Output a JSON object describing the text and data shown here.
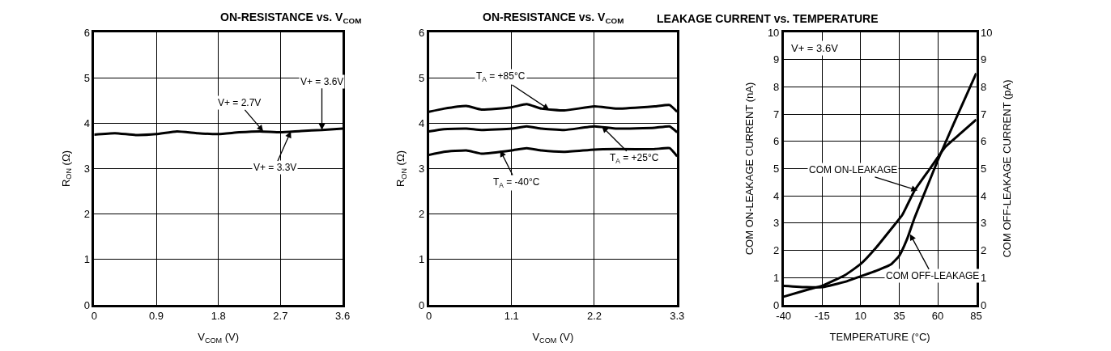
{
  "chart_data": [
    {
      "type": "line",
      "title": "ON-RESISTANCE vs. V$_{COM}$",
      "xlabel": "V$_{COM}$ (V)",
      "ylabel": "R$_{ON}$ (Ω)",
      "xlim": [
        0,
        3.6
      ],
      "xticks": [
        0,
        0.9,
        1.8,
        2.7,
        3.6
      ],
      "ylim": [
        0,
        6
      ],
      "yticks": [
        0,
        1,
        2,
        3,
        4,
        5,
        6
      ],
      "grid": true,
      "x": [
        0,
        0.3,
        0.6,
        0.9,
        1.2,
        1.5,
        1.8,
        2.1,
        2.4,
        2.7,
        3.0,
        3.3,
        3.6
      ],
      "series": [
        {
          "color": "#000000",
          "values": [
            3.75,
            3.78,
            3.74,
            3.76,
            3.82,
            3.78,
            3.76,
            3.8,
            3.82,
            3.8,
            3.83,
            3.85,
            3.88
          ]
        }
      ],
      "annotations": [
        {
          "text": "V+ = 2.7V",
          "x": 2.45,
          "y": 3.82
        },
        {
          "text": "V+ = 3.3V",
          "x": 2.85,
          "y": 3.82
        },
        {
          "text": "V+ = 3.6V",
          "x": 3.3,
          "y": 3.85
        }
      ]
    },
    {
      "type": "line",
      "title": "ON-RESISTANCE vs. V$_{COM}$",
      "xlabel": "V$_{COM}$ (V)",
      "ylabel": "R$_{ON}$ (Ω)",
      "xlim": [
        0,
        3.3
      ],
      "xticks": [
        0,
        1.1,
        2.2,
        3.3
      ],
      "ylim": [
        0,
        6
      ],
      "yticks": [
        0,
        1,
        2,
        3,
        4,
        5,
        6
      ],
      "grid": true,
      "x": [
        0,
        0.2,
        0.5,
        0.7,
        1.1,
        1.3,
        1.5,
        1.8,
        2.2,
        2.5,
        3.0,
        3.2,
        3.3
      ],
      "series": [
        {
          "color": "#000000",
          "values": [
            4.25,
            4.32,
            4.38,
            4.3,
            4.35,
            4.42,
            4.32,
            4.28,
            4.37,
            4.32,
            4.37,
            4.4,
            4.25
          ]
        },
        {
          "color": "#000000",
          "values": [
            3.82,
            3.87,
            3.88,
            3.85,
            3.88,
            3.93,
            3.88,
            3.85,
            3.93,
            3.88,
            3.9,
            3.93,
            3.8
          ]
        },
        {
          "color": "#000000",
          "values": [
            3.3,
            3.37,
            3.4,
            3.33,
            3.4,
            3.45,
            3.4,
            3.37,
            3.42,
            3.43,
            3.43,
            3.45,
            3.27
          ]
        }
      ],
      "annotations": [
        {
          "text": "T$_{A}$ = +85°C",
          "x": 1.6,
          "y": 4.3
        },
        {
          "text": "T$_{A}$ = +25°C",
          "x": 2.3,
          "y": 3.93
        },
        {
          "text": "T$_{A}$ = -40°C",
          "x": 0.95,
          "y": 3.4
        }
      ]
    },
    {
      "type": "line",
      "title": "LEAKAGE CURRENT vs. TEMPERATURE",
      "xlabel": "TEMPERATURE (°C)",
      "ylabel": "COM ON-LEAKAGE CURRENT (nA)",
      "y2label": "COM OFF-LEAKAGE CURRENT (pA)",
      "xlim": [
        -40,
        85
      ],
      "xticks": [
        -40,
        -15,
        10,
        35,
        60,
        85
      ],
      "ylim": [
        0,
        10
      ],
      "yticks": [
        0,
        1,
        2,
        3,
        4,
        5,
        6,
        7,
        8,
        9,
        10
      ],
      "y2lim": [
        0,
        10
      ],
      "y2ticks": [
        0,
        1,
        2,
        3,
        4,
        5,
        6,
        7,
        8,
        9,
        10
      ],
      "grid": true,
      "series": [
        {
          "color": "#000000",
          "x": [
            -40,
            -25,
            -15,
            0,
            10,
            20,
            30,
            37,
            45,
            55,
            65,
            75,
            85
          ],
          "values": [
            0.3,
            0.55,
            0.7,
            1.1,
            1.5,
            2.1,
            2.8,
            3.3,
            4.2,
            5.0,
            5.8,
            6.3,
            6.8
          ]
        },
        {
          "color": "#000000",
          "axis": "y2",
          "x": [
            -40,
            -25,
            -15,
            0,
            10,
            20,
            30,
            35,
            40,
            45,
            55,
            60,
            70,
            85
          ],
          "values": [
            0.7,
            0.65,
            0.65,
            0.85,
            1.05,
            1.25,
            1.5,
            1.8,
            2.4,
            3.2,
            4.6,
            5.3,
            6.6,
            8.5
          ]
        }
      ],
      "annotations": [
        "V+ = 3.6V",
        {
          "text": "COM ON-LEAKAGE",
          "x": 47,
          "y": 4.2
        },
        {
          "text": "COM OFF-LEAKAGE",
          "x": 42,
          "y": 2.6
        }
      ]
    }
  ]
}
